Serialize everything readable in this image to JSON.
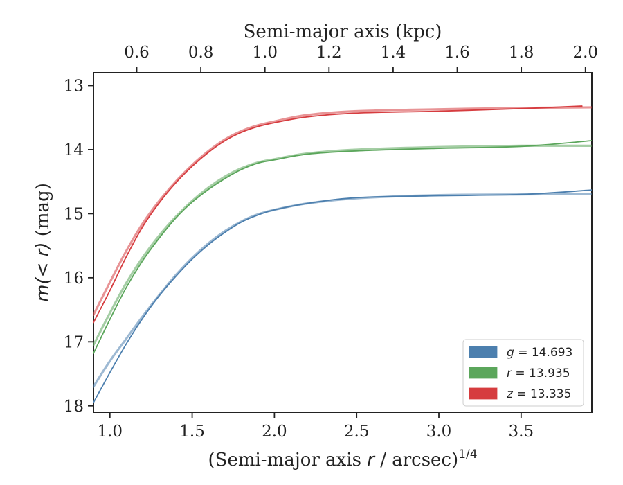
{
  "chart_data": {
    "type": "line",
    "xlabel_bottom": "(Semi-major axis r / arcsec)^1/4",
    "xlabel_bottom_main": "(Semi-major axis ",
    "xlabel_bottom_var": "r",
    "xlabel_bottom_unit": " / arcsec)",
    "xlabel_bottom_exp": "1/4",
    "xlabel_top": "Semi-major axis (kpc)",
    "ylabel": "m(< r) (mag)",
    "ylabel_main": "m(< r)",
    "ylabel_unit": " (mag)",
    "xlim": [
      0.9,
      3.93
    ],
    "xlim_top": [
      0.465,
      2.02
    ],
    "ylim": [
      18.1,
      12.8
    ],
    "y_inverted": true,
    "x_ticks": [
      "1.0",
      "1.5",
      "2.0",
      "2.5",
      "3.0",
      "3.5"
    ],
    "x_ticks_top": [
      "0.6",
      "0.8",
      "1.0",
      "1.2",
      "1.4",
      "1.6",
      "1.8",
      "2.0"
    ],
    "y_ticks": [
      "13",
      "14",
      "15",
      "16",
      "17",
      "18"
    ],
    "legend_position": "lower-right",
    "grid": false,
    "series": [
      {
        "name": "g = 14.693",
        "band": "g",
        "value": "14.693",
        "color": "#4c7fae",
        "data_x": [
          0.9,
          1.0,
          1.1,
          1.2,
          1.3,
          1.4,
          1.5,
          1.6,
          1.7,
          1.8,
          1.9,
          2.0,
          2.2,
          2.5,
          3.0,
          3.5,
          3.93
        ],
        "data_y": [
          17.95,
          17.48,
          17.03,
          16.63,
          16.28,
          15.98,
          15.71,
          15.48,
          15.29,
          15.13,
          15.02,
          14.94,
          14.84,
          14.75,
          14.72,
          14.7,
          14.63
        ],
        "model_x": [
          0.9,
          1.0,
          1.1,
          1.2,
          1.3,
          1.4,
          1.5,
          1.6,
          1.7,
          1.8,
          1.9,
          2.0,
          2.2,
          2.5,
          3.0,
          3.5,
          3.93
        ],
        "model_y": [
          17.7,
          17.3,
          16.95,
          16.6,
          16.27,
          15.96,
          15.69,
          15.46,
          15.27,
          15.12,
          15.01,
          14.94,
          14.84,
          14.76,
          14.71,
          14.7,
          14.69
        ]
      },
      {
        "name": "r = 13.935",
        "band": "r",
        "value": "13.935",
        "color": "#5ba65b",
        "data_x": [
          0.9,
          1.0,
          1.1,
          1.2,
          1.3,
          1.4,
          1.5,
          1.6,
          1.7,
          1.8,
          1.9,
          2.0,
          2.2,
          2.5,
          3.0,
          3.5,
          3.93
        ],
        "data_y": [
          17.18,
          16.65,
          16.15,
          15.73,
          15.38,
          15.07,
          14.82,
          14.62,
          14.45,
          14.31,
          14.21,
          14.16,
          14.07,
          14.02,
          13.98,
          13.95,
          13.86
        ],
        "model_x": [
          0.9,
          1.0,
          1.1,
          1.2,
          1.3,
          1.4,
          1.5,
          1.6,
          1.7,
          1.8,
          1.9,
          2.0,
          2.2,
          2.5,
          3.0,
          3.5,
          3.93
        ],
        "model_y": [
          17.05,
          16.55,
          16.08,
          15.68,
          15.34,
          15.05,
          14.8,
          14.59,
          14.42,
          14.29,
          14.2,
          14.15,
          14.06,
          14.0,
          13.96,
          13.94,
          13.94
        ]
      },
      {
        "name": "z = 13.335",
        "band": "z",
        "value": "13.335",
        "color": "#d63c3f",
        "data_x": [
          0.9,
          1.0,
          1.1,
          1.2,
          1.3,
          1.4,
          1.5,
          1.6,
          1.7,
          1.8,
          1.9,
          2.0,
          2.2,
          2.5,
          3.0,
          3.5,
          3.87
        ],
        "data_y": [
          16.7,
          16.2,
          15.67,
          15.2,
          14.83,
          14.52,
          14.26,
          14.04,
          13.86,
          13.73,
          13.64,
          13.58,
          13.49,
          13.43,
          13.4,
          13.36,
          13.32
        ],
        "model_x": [
          0.9,
          1.0,
          1.1,
          1.2,
          1.3,
          1.4,
          1.5,
          1.6,
          1.7,
          1.8,
          1.9,
          2.0,
          2.2,
          2.5,
          3.0,
          3.5,
          3.93
        ],
        "model_y": [
          16.58,
          16.07,
          15.58,
          15.15,
          14.8,
          14.5,
          14.24,
          14.02,
          13.84,
          13.71,
          13.62,
          13.56,
          13.46,
          13.4,
          13.37,
          13.35,
          13.34
        ]
      }
    ]
  }
}
